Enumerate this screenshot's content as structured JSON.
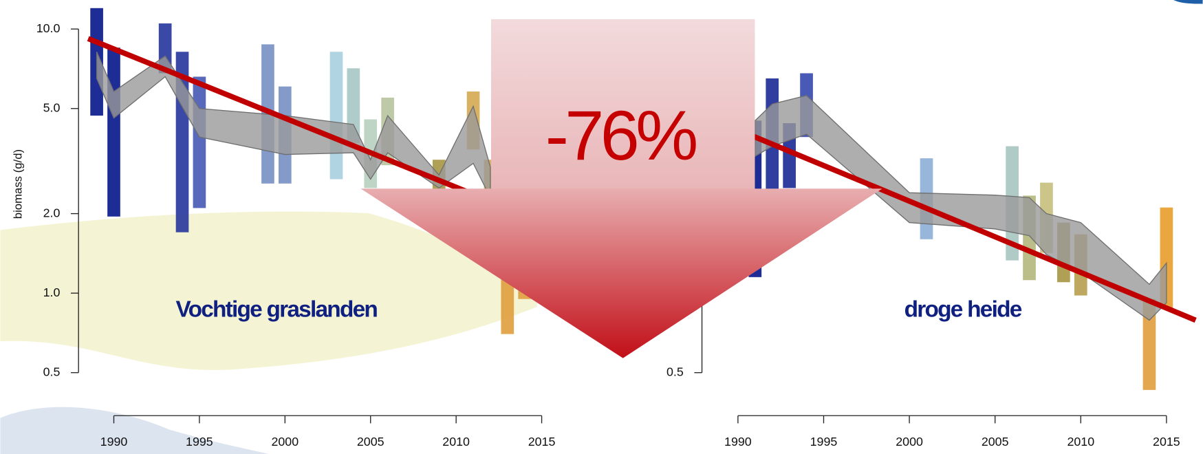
{
  "arrow_label": "-76%",
  "chart_data": [
    {
      "type": "range-bar",
      "title": "Vochtige graslanden",
      "ylabel": "biomass (g/d)",
      "log": true,
      "xlim": [
        1988,
        2016.5
      ],
      "ylim": [
        0.42,
        13
      ],
      "xticks": [
        1990,
        1995,
        2000,
        2005,
        2010,
        2015
      ],
      "yticks": [
        0.5,
        {
          "value": 1,
          "label": "1.0"
        },
        {
          "value": 2,
          "label": "2.0"
        },
        {
          "value": 5,
          "label": "5.0"
        },
        {
          "value": 10,
          "label": "10.0"
        }
      ],
      "bars": {
        "x": [
          1989,
          1990,
          1993,
          1994,
          1995,
          1999,
          2000,
          2003,
          2004,
          2005,
          2006,
          2009,
          2011,
          2012,
          2013,
          2014
        ],
        "low": [
          4.7,
          1.95,
          6.8,
          1.7,
          2.1,
          2.6,
          2.6,
          2.7,
          3.7,
          2.5,
          3.05,
          2.3,
          3.5,
          2.2,
          0.7,
          0.95
        ],
        "high": [
          12,
          8.5,
          10.5,
          8.2,
          6.6,
          8.75,
          6.06,
          8.2,
          7.1,
          4.55,
          5.5,
          3.2,
          5.8,
          3.2,
          1.13,
          1.1
        ],
        "colors": [
          "#0b1a8c",
          "#0b1a8c",
          "#2a3a9e",
          "#2a3a9e",
          "#4a5cb5",
          "#7a92c6",
          "#7a92c6",
          "#a9d0de",
          "#a8c8c6",
          "#b8d0c0",
          "#b8c4a0",
          "#a89848",
          "#d6aa55",
          "#d6aa55",
          "#e0a040",
          "#e0a040"
        ]
      },
      "band": {
        "x": [
          1989,
          1990,
          1993,
          1995,
          2000,
          2004,
          2005,
          2006,
          2009,
          2011,
          2012
        ],
        "low": [
          6.5,
          4.6,
          6.6,
          3.9,
          3.35,
          3.4,
          2.7,
          3.4,
          2.5,
          3.1,
          2.3
        ],
        "high": [
          8.2,
          5.8,
          7.9,
          5.0,
          4.7,
          4.35,
          3.2,
          4.7,
          2.8,
          5.1,
          3.0
        ],
        "color": "#9a9a9a"
      },
      "trend": {
        "x": [
          1988.5,
          2013
        ],
        "values": [
          9.2,
          2.1
        ],
        "color": "#c00000"
      }
    },
    {
      "type": "range-bar",
      "title": "droge heide",
      "log": true,
      "xlim": [
        1987.9,
        2016.8
      ],
      "ylim": [
        0.42,
        13
      ],
      "xticks": [
        1990,
        1995,
        2000,
        2005,
        2010,
        2015
      ],
      "yticks": [
        0.5
      ],
      "bars": {
        "x": [
          1991,
          1992,
          1993,
          1994,
          2001,
          2006,
          2007,
          2008,
          2009,
          2010,
          2014,
          2015
        ],
        "low": [
          1.15,
          2.13,
          2.5,
          3.9,
          1.6,
          1.33,
          1.12,
          1.42,
          1.1,
          0.98,
          0.43,
          0.88
        ],
        "high": [
          4.5,
          6.5,
          4.4,
          6.8,
          3.24,
          3.6,
          2.34,
          2.62,
          1.85,
          1.67,
          0.95,
          2.11
        ],
        "colors": [
          "#0b1a8c",
          "#1e2e98",
          "#1e2e98",
          "#3a4cb0",
          "#8fb0d6",
          "#a9c6c0",
          "#b5b87e",
          "#c8c080",
          "#a89848",
          "#b8a050",
          "#e0a040",
          "#e8a030"
        ]
      },
      "band": {
        "x": [
          1991,
          1992,
          1994,
          2000,
          2005,
          2007,
          2008,
          2010,
          2014,
          2015
        ],
        "low": [
          3.3,
          3.6,
          4.0,
          1.85,
          1.75,
          1.65,
          1.4,
          1.2,
          0.79,
          0.92
        ],
        "high": [
          4.5,
          5.2,
          5.6,
          2.4,
          2.35,
          2.3,
          2.0,
          1.85,
          1.08,
          1.3
        ],
        "color": "#9a9a9a"
      },
      "trend": {
        "x": [
          1988,
          2016.7
        ],
        "values": [
          4.7,
          0.79
        ],
        "color": "#c00000"
      }
    }
  ]
}
